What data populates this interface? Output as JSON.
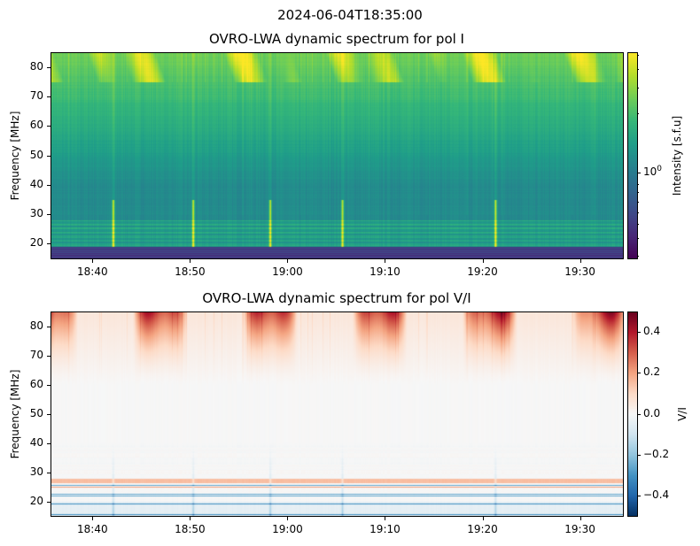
{
  "suptitle": "2024-06-04T18:35:00",
  "chart_data": [
    {
      "type": "heatmap",
      "title": "OVRO-LWA dynamic spectrum for pol I",
      "ylabel": "Frequency [MHz]",
      "xlabel": "",
      "colorbar_label": "Intensity [s.f.u]",
      "colormap": "viridis",
      "color_scale": "log",
      "colorbar_ticks": [
        {
          "value": 1,
          "label": "10",
          "exp": "0"
        }
      ],
      "xlim_minutes": [
        35.7,
        94.4
      ],
      "ylim": [
        15,
        85
      ],
      "xticks": [
        {
          "v": 40,
          "label": "18:40"
        },
        {
          "v": 50,
          "label": "18:50"
        },
        {
          "v": 60,
          "label": "19:00"
        },
        {
          "v": 70,
          "label": "19:10"
        },
        {
          "v": 80,
          "label": "19:20"
        },
        {
          "v": 90,
          "label": "19:30"
        }
      ],
      "yticks": [
        {
          "v": 20,
          "label": "20"
        },
        {
          "v": 30,
          "label": "30"
        },
        {
          "v": 40,
          "label": "40"
        },
        {
          "v": 50,
          "label": "50"
        },
        {
          "v": 60,
          "label": "60"
        },
        {
          "v": 70,
          "label": "70"
        },
        {
          "v": 80,
          "label": "80"
        }
      ],
      "burst_times_minutes": [
        42.1,
        50.3,
        58.2,
        65.6,
        81.3
      ]
    },
    {
      "type": "heatmap",
      "title": "OVRO-LWA dynamic spectrum for pol V/I",
      "ylabel": "Frequency [MHz]",
      "xlabel": "",
      "colorbar_label": "V/I",
      "colormap": "RdBu_r",
      "clim": [
        -0.5,
        0.5
      ],
      "colorbar_ticks": [
        {
          "value": 0.4,
          "label": "0.4"
        },
        {
          "value": 0.2,
          "label": "0.2"
        },
        {
          "value": 0,
          "label": "0.0"
        },
        {
          "value": -0.2,
          "label": "−0.2"
        },
        {
          "value": -0.4,
          "label": "−0.4"
        }
      ],
      "xlim_minutes": [
        35.7,
        94.4
      ],
      "ylim": [
        15,
        85
      ],
      "xticks": [
        {
          "v": 40,
          "label": "18:40"
        },
        {
          "v": 50,
          "label": "18:50"
        },
        {
          "v": 60,
          "label": "19:00"
        },
        {
          "v": 70,
          "label": "19:10"
        },
        {
          "v": 80,
          "label": "19:20"
        },
        {
          "v": 90,
          "label": "19:30"
        }
      ],
      "yticks": [
        {
          "v": 20,
          "label": "20"
        },
        {
          "v": 30,
          "label": "30"
        },
        {
          "v": 40,
          "label": "40"
        },
        {
          "v": 50,
          "label": "50"
        },
        {
          "v": 60,
          "label": "60"
        },
        {
          "v": 70,
          "label": "70"
        },
        {
          "v": 80,
          "label": "80"
        }
      ],
      "burst_times_minutes": [
        42.1,
        50.3,
        58.2,
        65.6,
        81.3
      ]
    }
  ]
}
